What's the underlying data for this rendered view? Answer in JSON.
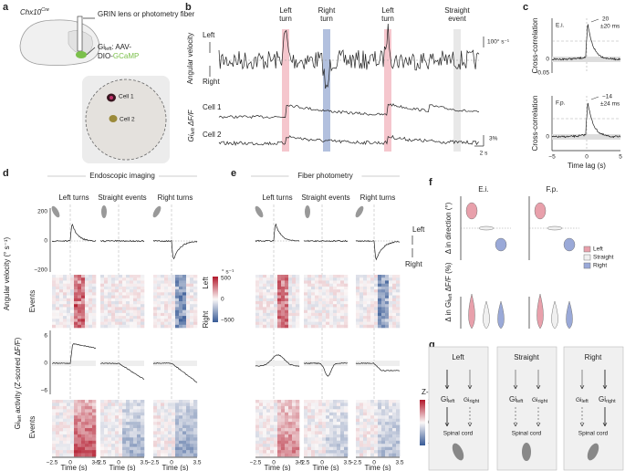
{
  "panel_labels": [
    "a",
    "b",
    "c",
    "d",
    "e",
    "f",
    "g"
  ],
  "a": {
    "mouse_line": "Chx10",
    "mouse_line_sup": "Cre",
    "implant": "GRIN lens or photometry fiber",
    "virus": [
      "Gi",
      "left",
      ": AAV-",
      "DIO-",
      "GCaMP"
    ],
    "cells": [
      "Cell 1",
      "Cell 2"
    ]
  },
  "b": {
    "angular_velocity": "Angular velocity",
    "left": "Left",
    "right": "Right",
    "events": [
      [
        "Left",
        "turn"
      ],
      [
        "Right",
        "turn"
      ],
      [
        "Left",
        "turn"
      ],
      [
        "Straight",
        "event"
      ]
    ],
    "scale_v": "100° s⁻¹",
    "cells": [
      "Cell 1",
      "Cell 2"
    ],
    "ylabel": [
      "Gi",
      "left",
      " ΔF/F"
    ],
    "scale_f": "3%",
    "scale_t": "2 s"
  },
  "c": {
    "plots": [
      {
        "label": "E.i.",
        "lag": "20",
        "err": "±20 ms",
        "yticks": [
          "0",
          "−0.05"
        ]
      },
      {
        "label": "F.p.",
        "lag": "−14",
        "err": "±24 ms",
        "yticks": [
          "0"
        ]
      }
    ],
    "ylabel": "Cross-correlation",
    "xlabel": "Time lag (s)",
    "xticks": [
      "−5",
      "0",
      "5"
    ]
  },
  "d": {
    "header": "Endoscopic imaging",
    "columns": [
      "Left turns",
      "Straight events",
      "Right turns"
    ],
    "ylabel_velocity": "Angular velocity (° s⁻¹)",
    "yticks_velocity": [
      "200",
      "0",
      "−200"
    ],
    "events": "Events",
    "yticks_activity": [
      "6",
      "0",
      "−6"
    ],
    "ylabel_activity": [
      "Gi",
      "left",
      " activity (Z-scored ΔF/F)"
    ],
    "xticks": [
      "−2.5",
      "0",
      "3.5"
    ],
    "xlabel": "Time (s)"
  },
  "colorbars": {
    "velocity": {
      "top": "Left",
      "unit": "° s⁻¹",
      "ticks": [
        "500",
        "0",
        "−500"
      ],
      "bottom": "Right"
    },
    "zscore": {
      "title": "Z-score",
      "ticks": [
        "10",
        "0",
        "−10"
      ]
    }
  },
  "e": {
    "header": "Fiber photometry",
    "columns": [
      "Left turns",
      "Straight events",
      "Right turns"
    ],
    "left": "Left",
    "right": "Right",
    "xticks": [
      "−2.5",
      "0",
      "3.5"
    ],
    "xlabel": "Time (s)"
  },
  "f": {
    "titles": [
      "E.i.",
      "F.p."
    ],
    "ylabel_direction": "Δ in direction (°)",
    "ylabel_activity": [
      "Δ in Gi",
      "left",
      " ΔF/F (%)"
    ],
    "legend": [
      "Left",
      "Straight",
      "Right"
    ]
  },
  "g": {
    "boxes": [
      "Left",
      "Straight",
      "Right"
    ],
    "gi": "Gi",
    "left": "left",
    "right": "right",
    "spinal": "Spinal cord"
  }
}
